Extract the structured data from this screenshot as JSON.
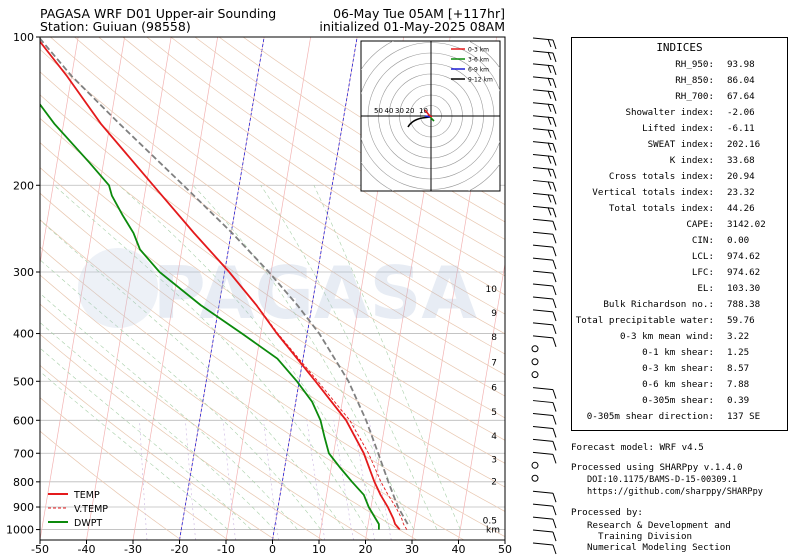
{
  "header": {
    "title_left": "PAGASA WRF D01 Upper-air Sounding",
    "station": "Station: Guiuan (98558)",
    "valid_time": "06-May Tue 05AM [+117hr]",
    "init_time": "initialized 01-May-2025 08AM"
  },
  "watermark": "PAGASA",
  "colors": {
    "temp": "#e41a1c",
    "vtemp": "#e41a1c",
    "dwpt": "#0c8a0c",
    "parcel": "#808080",
    "hodo_0_3": "#e41a1c",
    "hodo_3_6": "#0c8a0c",
    "hodo_6_9": "#1f1fd6",
    "hodo_9_12": "#000000"
  },
  "chart_data": {
    "type": "line",
    "subtype": "skew-t log-p",
    "x_ticks": [
      -50,
      -40,
      -30,
      -20,
      -10,
      0,
      10,
      20,
      30,
      40,
      50
    ],
    "y_ticks": [
      100,
      200,
      300,
      400,
      500,
      600,
      700,
      800,
      900,
      1000
    ],
    "xlim": [
      -50,
      50
    ],
    "ylim": [
      1050,
      100
    ],
    "y_scale": "log",
    "legend_position": "lower-left",
    "height_labels_km": [
      "0.5",
      "2",
      "3",
      "4",
      "5",
      "6",
      "7",
      "8",
      "9",
      "10"
    ],
    "height_unit": "km",
    "series": [
      {
        "name": "TEMP",
        "style": "solid",
        "points": [
          [
            1000,
            27
          ],
          [
            975,
            25.8
          ],
          [
            950,
            25.2
          ],
          [
            900,
            23.6
          ],
          [
            850,
            21.6
          ],
          [
            800,
            19.8
          ],
          [
            700,
            16.5
          ],
          [
            600,
            11.5
          ],
          [
            500,
            3.5
          ],
          [
            400,
            -6.5
          ],
          [
            350,
            -12
          ],
          [
            300,
            -19
          ],
          [
            250,
            -28
          ],
          [
            200,
            -38.5
          ],
          [
            150,
            -52
          ],
          [
            120,
            -61
          ],
          [
            100,
            -69
          ]
        ]
      },
      {
        "name": "V.TEMP",
        "style": "dashed",
        "points": [
          [
            1000,
            28.5
          ],
          [
            975,
            27.6
          ],
          [
            950,
            27
          ],
          [
            900,
            25.3
          ],
          [
            850,
            23.2
          ],
          [
            800,
            21.2
          ],
          [
            700,
            17.5
          ],
          [
            600,
            12.3
          ],
          [
            500,
            4
          ],
          [
            400,
            -6.3
          ],
          [
            350,
            -11.9
          ],
          [
            300,
            -19
          ],
          [
            250,
            -28
          ],
          [
            200,
            -38.5
          ],
          [
            150,
            -52
          ],
          [
            120,
            -61
          ],
          [
            100,
            -69
          ]
        ]
      },
      {
        "name": "DWPT",
        "style": "solid",
        "points": [
          [
            1000,
            22.5
          ],
          [
            975,
            22.3
          ],
          [
            950,
            21.4
          ],
          [
            900,
            19.5
          ],
          [
            850,
            18
          ],
          [
            800,
            15
          ],
          [
            750,
            12
          ],
          [
            700,
            9
          ],
          [
            650,
            7.5
          ],
          [
            600,
            6
          ],
          [
            550,
            3.5
          ],
          [
            500,
            -0.5
          ],
          [
            450,
            -5.5
          ],
          [
            400,
            -14
          ],
          [
            350,
            -24
          ],
          [
            300,
            -34
          ],
          [
            270,
            -39
          ],
          [
            250,
            -41
          ],
          [
            230,
            -44
          ],
          [
            210,
            -47
          ],
          [
            200,
            -48
          ],
          [
            180,
            -53
          ],
          [
            150,
            -62
          ],
          [
            130,
            -68
          ],
          [
            110,
            -72
          ],
          [
            100,
            -74
          ]
        ]
      },
      {
        "name": "",
        "style": "parcel-dashed",
        "points": [
          [
            974.62,
            28.5
          ],
          [
            900,
            25.8
          ],
          [
            800,
            22.8
          ],
          [
            700,
            19.6
          ],
          [
            600,
            15.8
          ],
          [
            500,
            10.6
          ],
          [
            400,
            2.6
          ],
          [
            350,
            -3.2
          ],
          [
            300,
            -10.5
          ],
          [
            250,
            -19.8
          ],
          [
            200,
            -32
          ],
          [
            150,
            -48
          ],
          [
            120,
            -60
          ],
          [
            100,
            -68.5
          ]
        ]
      }
    ]
  },
  "hodograph": {
    "ring_labels": [
      "50",
      "40",
      "30",
      "20",
      "10"
    ],
    "legend": [
      "0-3 km",
      "3-6 km",
      "6-9 km",
      "9-12 km"
    ]
  },
  "wind_barbs": {
    "count": 40
  },
  "indices": {
    "title": "INDICES",
    "rows": [
      {
        "label": "RH_950:",
        "value": "93.98"
      },
      {
        "label": "RH_850:",
        "value": "86.04"
      },
      {
        "label": "RH_700:",
        "value": "67.64"
      },
      {
        "label": "Showalter index:",
        "value": "-2.06"
      },
      {
        "label": "Lifted index:",
        "value": "-6.11"
      },
      {
        "label": "SWEAT index:",
        "value": "202.16"
      },
      {
        "label": "K index:",
        "value": "33.68"
      },
      {
        "label": "Cross totals index:",
        "value": "20.94"
      },
      {
        "label": "Vertical totals index:",
        "value": "23.32"
      },
      {
        "label": "Total totals index:",
        "value": "44.26"
      },
      {
        "label": "CAPE:",
        "value": "3142.02"
      },
      {
        "label": "CIN:",
        "value": "0.00"
      },
      {
        "label": "LCL:",
        "value": "974.62"
      },
      {
        "label": "LFC:",
        "value": "974.62"
      },
      {
        "label": "EL:",
        "value": "103.30"
      },
      {
        "label": "Bulk Richardson no.:",
        "value": "788.38"
      },
      {
        "label": "Total precipitable water:",
        "value": "59.76"
      },
      {
        "label": "0-3 km mean wind:",
        "value": "3.22"
      },
      {
        "label": "0-1 km shear:",
        "value": "1.25"
      },
      {
        "label": "0-3 km shear:",
        "value": "8.57"
      },
      {
        "label": "0-6 km shear:",
        "value": "7.88"
      },
      {
        "label": "0-305m shear:",
        "value": "0.39"
      },
      {
        "label": "0-305m shear direction:",
        "value": "137 SE"
      }
    ]
  },
  "footer": {
    "model": "Forecast model: WRF v4.5",
    "processed_using": "Processed using SHARPpy v.1.4.0",
    "doi": "DOI:10.1175/BAMS-D-15-00309.1",
    "url": "https://github.com/sharppy/SHARPpy",
    "processed_by": "Processed by:",
    "division_1": "Research & Development and",
    "division_2": "Training Division",
    "section": "Numerical Modeling Section"
  }
}
